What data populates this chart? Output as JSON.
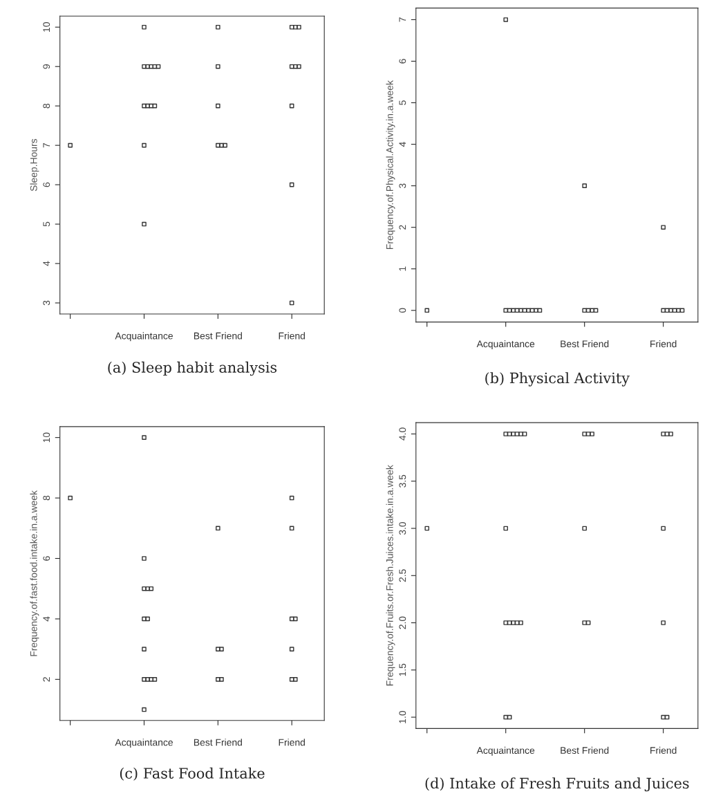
{
  "chart_data": [
    {
      "type": "scatter",
      "title": "(a) Sleep habit analysis",
      "ylabel": "Sleep.Hours",
      "categories": [
        null,
        "Acquaintance",
        "Best Friend",
        "Friend"
      ],
      "ylim": [
        2.72,
        10.28
      ],
      "yticks": [
        3,
        4,
        5,
        6,
        7,
        8,
        9,
        10
      ],
      "marker": "square",
      "series": [
        {
          "color": "#333333",
          "x": [
            null,
            "Acquaintance",
            "Acquaintance",
            "Acquaintance",
            "Acquaintance",
            "Acquaintance",
            "Acquaintance",
            "Acquaintance",
            "Acquaintance",
            "Acquaintance",
            "Acquaintance",
            "Acquaintance",
            "Acquaintance",
            "Best Friend",
            "Best Friend",
            "Best Friend",
            "Best Friend",
            "Best Friend",
            "Best Friend",
            "Friend",
            "Friend",
            "Friend",
            "Friend",
            "Friend",
            "Friend",
            "Friend",
            "Friend",
            "Friend"
          ],
          "values": [
            7,
            10,
            9,
            9,
            9,
            9,
            9,
            8,
            8,
            8,
            8,
            7,
            5,
            10,
            9,
            8,
            7,
            7,
            7,
            10,
            10,
            10,
            9,
            9,
            9,
            8,
            6,
            3
          ]
        }
      ]
    },
    {
      "type": "scatter",
      "title": "(b) Physical Activity",
      "ylabel": "Frequency.of.Physical.Activity.in.a.week",
      "categories": [
        null,
        "Acquaintance",
        "Best Friend",
        "Friend"
      ],
      "ylim": [
        -0.28,
        7.28
      ],
      "yticks": [
        0,
        1,
        2,
        3,
        4,
        5,
        6,
        7
      ],
      "marker": "square",
      "series": [
        {
          "color": "#333333",
          "x": [
            null,
            "Acquaintance",
            "Acquaintance",
            "Acquaintance",
            "Acquaintance",
            "Acquaintance",
            "Acquaintance",
            "Acquaintance",
            "Acquaintance",
            "Acquaintance",
            "Acquaintance",
            "Acquaintance",
            "Best Friend",
            "Best Friend",
            "Best Friend",
            "Best Friend",
            "Best Friend",
            "Friend",
            "Friend",
            "Friend",
            "Friend",
            "Friend",
            "Friend",
            "Friend"
          ],
          "values": [
            0,
            7,
            0,
            0,
            0,
            0,
            0,
            0,
            0,
            0,
            0,
            0,
            3,
            0,
            0,
            0,
            0,
            2,
            0,
            0,
            0,
            0,
            0,
            0
          ]
        }
      ]
    },
    {
      "type": "scatter",
      "title": "(c) Fast Food Intake",
      "ylabel": "Frequency.of.fast.food.intake.in.a.week",
      "categories": [
        null,
        "Acquaintance",
        "Best Friend",
        "Friend"
      ],
      "ylim": [
        0.64,
        10.36
      ],
      "yticks": [
        2,
        4,
        6,
        8,
        10
      ],
      "marker": "square",
      "series": [
        {
          "color": "#333333",
          "x": [
            null,
            "Acquaintance",
            "Acquaintance",
            "Acquaintance",
            "Acquaintance",
            "Acquaintance",
            "Acquaintance",
            "Acquaintance",
            "Acquaintance",
            "Acquaintance",
            "Acquaintance",
            "Acquaintance",
            "Acquaintance",
            "Acquaintance",
            "Best Friend",
            "Best Friend",
            "Best Friend",
            "Best Friend",
            "Best Friend",
            "Friend",
            "Friend",
            "Friend",
            "Friend",
            "Friend",
            "Friend",
            "Friend"
          ],
          "values": [
            8,
            10,
            6,
            5,
            5,
            5,
            4,
            4,
            3,
            2,
            2,
            2,
            2,
            1,
            7,
            3,
            3,
            2,
            2,
            8,
            7,
            4,
            4,
            3,
            2,
            2
          ]
        }
      ]
    },
    {
      "type": "scatter",
      "title": "(d) Intake of Fresh Fruits and Juices",
      "ylabel": "Frequency.of.Fruits.or.Fresh.Juices.intake.in.a.week",
      "categories": [
        null,
        "Acquaintance",
        "Best Friend",
        "Friend"
      ],
      "ylim": [
        0.88,
        4.12
      ],
      "yticks": [
        {
          "value": 1,
          "label": "1.0"
        },
        1.5,
        {
          "value": 2,
          "label": "2.0"
        },
        2.5,
        {
          "value": 3,
          "label": "3.0"
        },
        3.5,
        {
          "value": 4,
          "label": "4.0"
        }
      ],
      "marker": "square",
      "series": [
        {
          "color": "#333333",
          "x": [
            null,
            "Acquaintance",
            "Acquaintance",
            "Acquaintance",
            "Acquaintance",
            "Acquaintance",
            "Acquaintance",
            "Acquaintance",
            "Acquaintance",
            "Acquaintance",
            "Acquaintance",
            "Acquaintance",
            "Acquaintance",
            "Acquaintance",
            "Acquaintance",
            "Best Friend",
            "Best Friend",
            "Best Friend",
            "Best Friend",
            "Best Friend",
            "Best Friend",
            "Friend",
            "Friend",
            "Friend",
            "Friend",
            "Friend",
            "Friend",
            "Friend"
          ],
          "values": [
            3,
            4,
            4,
            4,
            4,
            4,
            4,
            3,
            2,
            2,
            2,
            2,
            2,
            1,
            1,
            4,
            4,
            4,
            3,
            2,
            2,
            4,
            4,
            4,
            3,
            2,
            1,
            1
          ]
        }
      ]
    }
  ]
}
